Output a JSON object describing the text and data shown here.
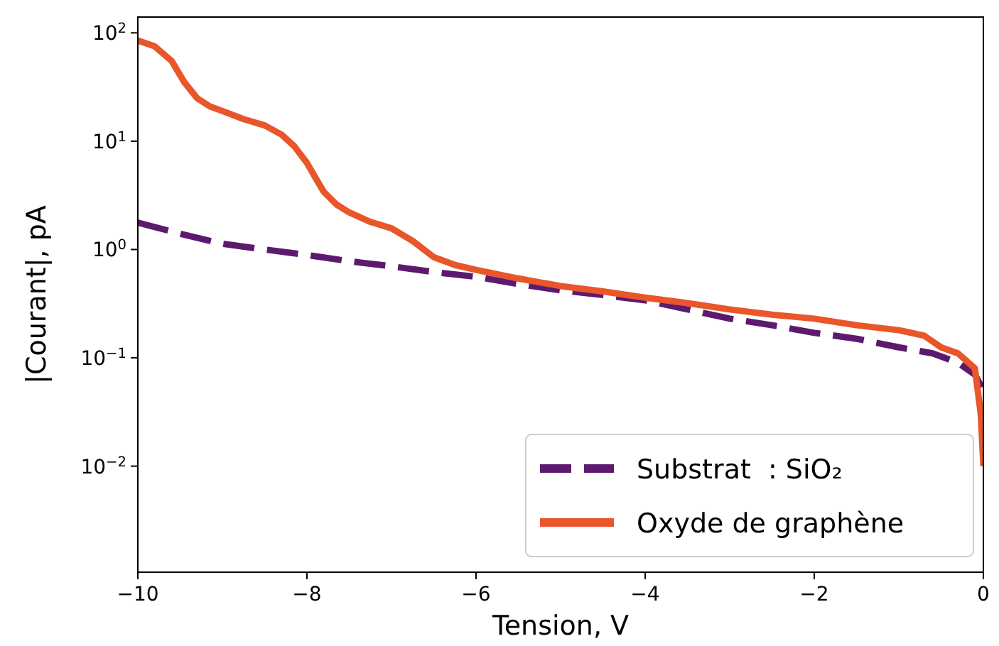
{
  "chart_data": {
    "type": "line",
    "xlabel": "Tension, V",
    "ylabel": "|Courant|, pA",
    "log": "y",
    "xlim": [
      -10,
      0
    ],
    "ylim": [
      0.00105,
      140
    ],
    "xticks": [
      {
        "value": -10,
        "label": "−10"
      },
      {
        "value": -8,
        "label": "−8"
      },
      {
        "value": -6,
        "label": "−6"
      },
      {
        "value": -4,
        "label": "−4"
      },
      {
        "value": -2,
        "label": "−2"
      },
      {
        "value": 0,
        "label": "0"
      }
    ],
    "yticks": [
      {
        "value": 0.01,
        "label": "10$^{−2}$"
      },
      {
        "value": 0.1,
        "label": "10$^{−1}$"
      },
      {
        "value": 1,
        "label": "10$^{0}$"
      },
      {
        "value": 10,
        "label": "10$^{1}$"
      },
      {
        "value": 100,
        "label": "10$^{2}$"
      }
    ],
    "legend": "bottom right",
    "grid": false,
    "series": [
      {
        "name": "Substrat  : SiO₂",
        "color": "#5c1a6e",
        "line_style": "dashed",
        "x": [
          -10,
          -9.5,
          -9,
          -8.5,
          -8,
          -7.5,
          -7,
          -6.5,
          -6,
          -5.5,
          -5,
          -4.5,
          -4,
          -3.5,
          -3,
          -2.5,
          -2,
          -1.5,
          -1,
          -0.6,
          -0.3,
          -0.1,
          0
        ],
        "values": [
          1.77,
          1.4,
          1.13,
          1.0,
          0.89,
          0.78,
          0.7,
          0.62,
          0.56,
          0.48,
          0.42,
          0.38,
          0.34,
          0.28,
          0.23,
          0.2,
          0.17,
          0.15,
          0.125,
          0.11,
          0.09,
          0.07,
          0.05
        ]
      },
      {
        "name": "Oxyde de graphène",
        "color": "#e8562a",
        "line_style": "solid",
        "x": [
          -10,
          -9.8,
          -9.6,
          -9.45,
          -9.3,
          -9.15,
          -9,
          -8.75,
          -8.5,
          -8.3,
          -8.15,
          -8,
          -7.9,
          -7.8,
          -7.65,
          -7.5,
          -7.25,
          -7,
          -6.75,
          -6.5,
          -6.25,
          -6,
          -5.5,
          -5,
          -4.5,
          -4,
          -3.5,
          -3,
          -2.5,
          -2,
          -1.5,
          -1,
          -0.7,
          -0.5,
          -0.3,
          -0.1,
          -0.03,
          0
        ],
        "values": [
          85,
          75,
          55,
          35,
          25,
          21,
          19,
          16,
          14,
          11.5,
          9,
          6.3,
          4.6,
          3.4,
          2.6,
          2.2,
          1.8,
          1.57,
          1.2,
          0.85,
          0.72,
          0.65,
          0.54,
          0.46,
          0.41,
          0.36,
          0.32,
          0.28,
          0.25,
          0.23,
          0.2,
          0.18,
          0.16,
          0.125,
          0.11,
          0.08,
          0.03,
          0.01
        ]
      }
    ]
  }
}
